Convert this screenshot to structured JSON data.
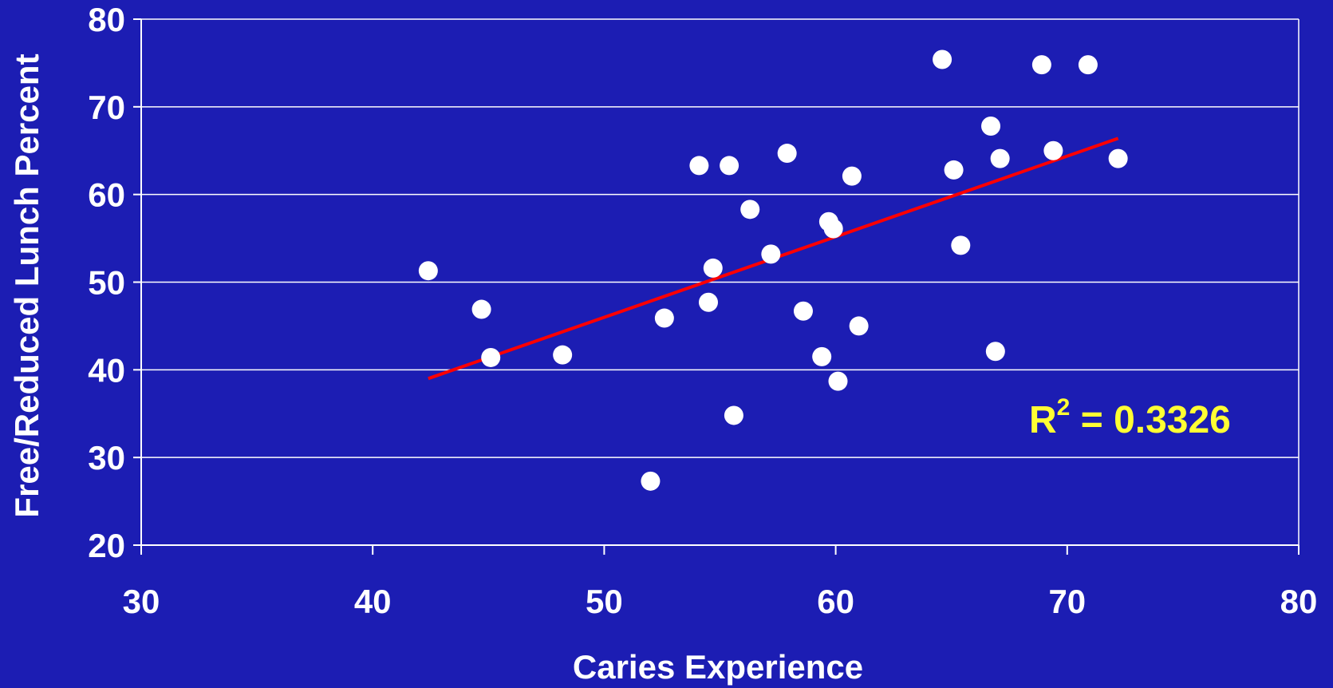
{
  "chart_data": {
    "type": "scatter",
    "title": "",
    "xlabel": "Caries Experience",
    "ylabel": "Free/Reduced Lunch Percent",
    "xlim": [
      30,
      80
    ],
    "ylim": [
      20,
      80
    ],
    "x_ticks": [
      "30",
      "40",
      "50",
      "60",
      "70",
      "80"
    ],
    "y_ticks": [
      "20",
      "30",
      "40",
      "50",
      "60",
      "70",
      "80"
    ],
    "grid": "horizontal",
    "legend": "none",
    "colors": {
      "background": "#1c1db3",
      "points": "#ffffff",
      "trendline": "#ff0000",
      "annotation": "#ffff33",
      "grid": "#ffffff"
    },
    "points": [
      {
        "x": 42.4,
        "y": 51.3
      },
      {
        "x": 44.7,
        "y": 46.9
      },
      {
        "x": 45.1,
        "y": 41.4
      },
      {
        "x": 48.2,
        "y": 41.7
      },
      {
        "x": 52.0,
        "y": 27.3
      },
      {
        "x": 52.6,
        "y": 45.9
      },
      {
        "x": 54.1,
        "y": 63.3
      },
      {
        "x": 54.5,
        "y": 47.7
      },
      {
        "x": 54.7,
        "y": 51.6
      },
      {
        "x": 55.4,
        "y": 63.3
      },
      {
        "x": 55.6,
        "y": 34.8
      },
      {
        "x": 56.3,
        "y": 58.3
      },
      {
        "x": 57.2,
        "y": 53.2
      },
      {
        "x": 57.9,
        "y": 64.7
      },
      {
        "x": 58.6,
        "y": 46.7
      },
      {
        "x": 59.4,
        "y": 41.5
      },
      {
        "x": 59.7,
        "y": 56.9
      },
      {
        "x": 59.9,
        "y": 56.1
      },
      {
        "x": 60.1,
        "y": 38.7
      },
      {
        "x": 60.7,
        "y": 62.1
      },
      {
        "x": 61.0,
        "y": 45.0
      },
      {
        "x": 64.6,
        "y": 75.4
      },
      {
        "x": 65.1,
        "y": 62.8
      },
      {
        "x": 65.4,
        "y": 54.2
      },
      {
        "x": 66.7,
        "y": 67.8
      },
      {
        "x": 66.9,
        "y": 42.1
      },
      {
        "x": 67.1,
        "y": 64.1
      },
      {
        "x": 68.9,
        "y": 74.8
      },
      {
        "x": 69.4,
        "y": 65.0
      },
      {
        "x": 70.9,
        "y": 74.8
      },
      {
        "x": 72.2,
        "y": 64.1
      }
    ],
    "trendline": {
      "type": "linear",
      "x": [
        42.4,
        72.2
      ],
      "y": [
        39.0,
        66.4
      ]
    },
    "annotation": {
      "prefix": "R",
      "superscript": "2",
      "suffix": " = 0.3326"
    }
  }
}
